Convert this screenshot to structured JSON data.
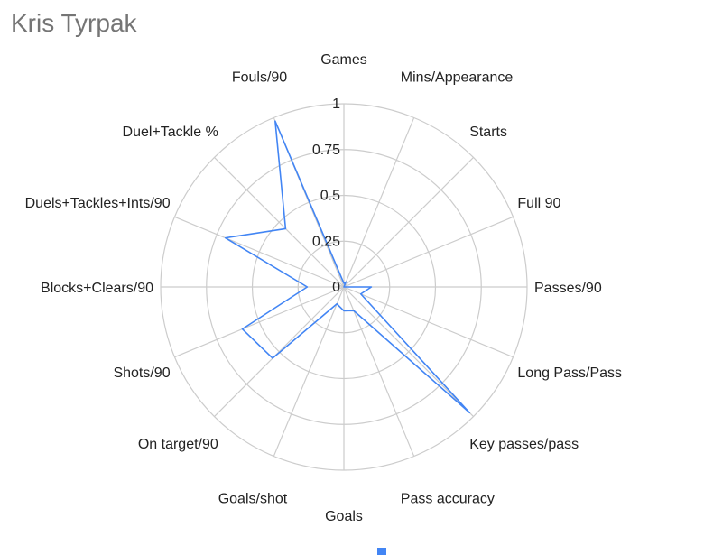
{
  "chart_data": {
    "type": "radar",
    "title": "Kris Tyrpak",
    "axes": [
      "Games",
      "Mins/Appearance",
      "Starts",
      "Full 90",
      "Passes/90",
      "Long Pass/Pass",
      "Key passes/pass",
      "Pass accuracy",
      "Goals",
      "Goals/shot",
      "On target/90",
      "Shots/90",
      "Blocks+Clears/90",
      "Duels+Tackles+Ints/90",
      "Duel+Tackle %",
      "Fouls/90"
    ],
    "ticks": [
      "0",
      "0.25",
      "0.5",
      "0.75",
      "1"
    ],
    "range": [
      0,
      1
    ],
    "series": [
      {
        "values": [
          0.02,
          0.03,
          0.0,
          0.0,
          0.15,
          0.1,
          0.97,
          0.14,
          0.13,
          0.1,
          0.55,
          0.6,
          0.2,
          0.7,
          0.45,
          0.98
        ]
      }
    ],
    "colors": {
      "series": "#4285f4",
      "grid": "#cccccc"
    }
  }
}
